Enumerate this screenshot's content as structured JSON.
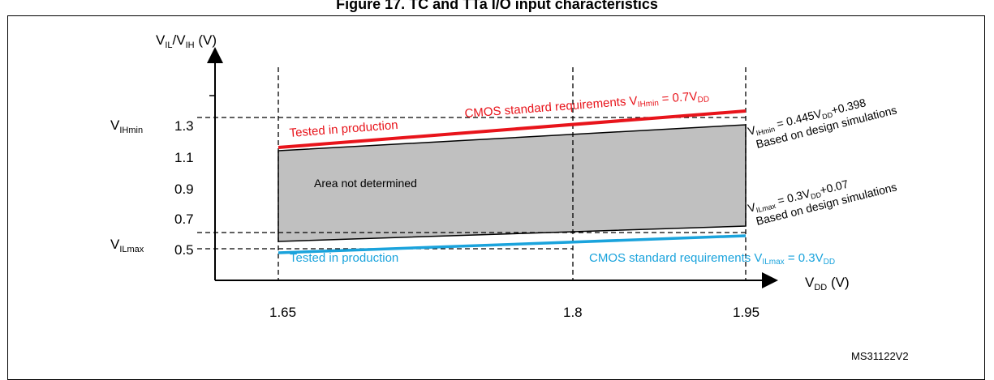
{
  "figure": {
    "title": "Figure 17. TC and TTa I/O input characteristics",
    "id_code": "MS31122V2"
  },
  "axes": {
    "y": {
      "label_main": "V",
      "label_sub1": "IL",
      "label_mid": "/V",
      "label_sub2": "IH",
      "label_unit": " (V)"
    },
    "x": {
      "label_main": "V",
      "label_sub": "DD",
      "label_unit": " (V)"
    },
    "y_ticks": [
      "1.3",
      "1.1",
      "0.9",
      "0.7",
      "0.5"
    ],
    "x_ticks": [
      "1.65",
      "1.8",
      "1.95"
    ],
    "vihmin": {
      "main": "V",
      "sub": "IHmin"
    },
    "vilmax": {
      "main": "V",
      "sub": "ILmax"
    }
  },
  "annotations": {
    "red_top": {
      "text": "CMOS standard  requirements V",
      "sub": "IHmin",
      "tail": " = 0.7V",
      "tail_sub": "DD"
    },
    "red_tested": "Tested in production",
    "area": "Area not determined",
    "blue_tested": "Tested in production",
    "blue_cmos": {
      "text": "CMOS standard  requirements V",
      "sub": "ILmax",
      "tail": " = 0.3V",
      "tail_sub": "DD"
    },
    "vih_formula": {
      "main": "V",
      "sub": "IHmin",
      "rest": " = 0.445V",
      "sub2": "DD",
      "rest2": "+0.398"
    },
    "vih_note": "Based on design simulations",
    "vil_formula": {
      "main": "V",
      "sub": "ILmax",
      "rest": " = 0.3V",
      "sub2": "DD",
      "rest2": "+0.07"
    },
    "vil_note": "Based on design simulations"
  },
  "colors": {
    "red": "#e8141b",
    "blue": "#1aa3dc",
    "gray_area": "#c0c0c0"
  }
}
